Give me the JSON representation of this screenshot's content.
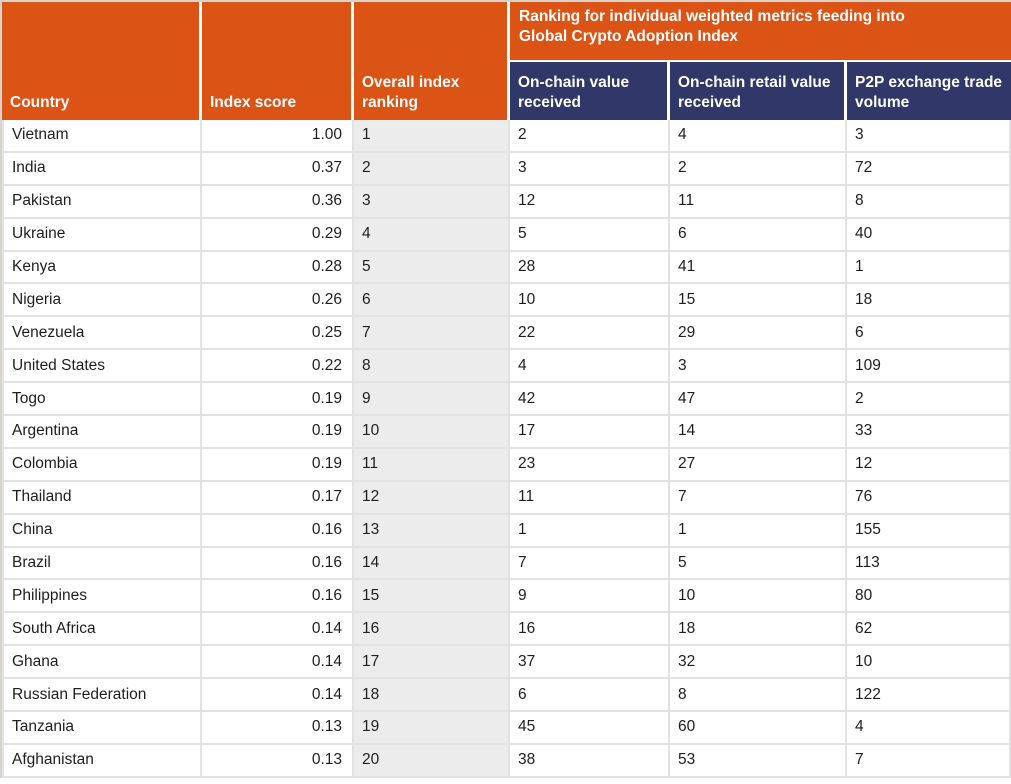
{
  "colors": {
    "header_orange": "#dc5415",
    "header_navy": "#313768",
    "ranking_column_gray": "#ececec",
    "grid_border": "#e2e2e2",
    "header_text": "#ffffff",
    "body_text": "#1e1e1e"
  },
  "chart_data": {
    "type": "table",
    "title": "Ranking for individual weighted metrics feeding into Global Crypto Adoption Index",
    "columns": [
      {
        "key": "country",
        "label": "Country"
      },
      {
        "key": "index-score",
        "label": "Index score"
      },
      {
        "key": "overall-ranking",
        "label": "Overall index ranking"
      },
      {
        "key": "on-chain-value",
        "label": "On-chain value received"
      },
      {
        "key": "on-chain-retail",
        "label": "On-chain retail value received"
      },
      {
        "key": "p2p-volume",
        "label": "P2P exchange trade volume"
      }
    ],
    "rows": [
      [
        "Vietnam",
        "1.00",
        "1",
        "2",
        "4",
        "3"
      ],
      [
        "India",
        "0.37",
        "2",
        "3",
        "2",
        "72"
      ],
      [
        "Pakistan",
        "0.36",
        "3",
        "12",
        "11",
        "8"
      ],
      [
        "Ukraine",
        "0.29",
        "4",
        "5",
        "6",
        "40"
      ],
      [
        "Kenya",
        "0.28",
        "5",
        "28",
        "41",
        "1"
      ],
      [
        "Nigeria",
        "0.26",
        "6",
        "10",
        "15",
        "18"
      ],
      [
        "Venezuela",
        "0.25",
        "7",
        "22",
        "29",
        "6"
      ],
      [
        "United States",
        "0.22",
        "8",
        "4",
        "3",
        "109"
      ],
      [
        "Togo",
        "0.19",
        "9",
        "42",
        "47",
        "2"
      ],
      [
        "Argentina",
        "0.19",
        "10",
        "17",
        "14",
        "33"
      ],
      [
        "Colombia",
        "0.19",
        "11",
        "23",
        "27",
        "12"
      ],
      [
        "Thailand",
        "0.17",
        "12",
        "11",
        "7",
        "76"
      ],
      [
        "China",
        "0.16",
        "13",
        "1",
        "1",
        "155"
      ],
      [
        "Brazil",
        "0.16",
        "14",
        "7",
        "5",
        "113"
      ],
      [
        "Philippines",
        "0.16",
        "15",
        "9",
        "10",
        "80"
      ],
      [
        "South Africa",
        "0.14",
        "16",
        "16",
        "18",
        "62"
      ],
      [
        "Ghana",
        "0.14",
        "17",
        "37",
        "32",
        "10"
      ],
      [
        "Russian Federation",
        "0.14",
        "18",
        "6",
        "8",
        "122"
      ],
      [
        "Tanzania",
        "0.13",
        "19",
        "45",
        "60",
        "4"
      ],
      [
        "Afghanistan",
        "0.13",
        "20",
        "38",
        "53",
        "7"
      ]
    ]
  }
}
